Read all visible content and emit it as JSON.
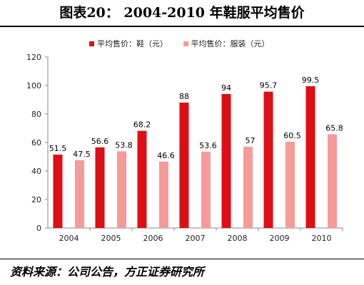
{
  "title": "图表20：  2004-2010 年鞋服平均售价",
  "source": "资料来源：公司公告，方正证券研究所",
  "chart_data": {
    "type": "bar",
    "categories": [
      "2004",
      "2005",
      "2006",
      "2007",
      "2008",
      "2009",
      "2010"
    ],
    "series": [
      {
        "name": "平均售价：鞋（元）",
        "color": "#dd0f14",
        "values": [
          51.5,
          56.6,
          68.2,
          88,
          94,
          95.7,
          99.5
        ]
      },
      {
        "name": "平均售价：服装（元）",
        "color": "#f79a9a",
        "values": [
          47.5,
          53.8,
          46.6,
          53.6,
          57,
          60.5,
          65.8
        ]
      }
    ],
    "ylim": [
      0,
      120
    ],
    "yticks": [
      0,
      20,
      40,
      60,
      80,
      100,
      120
    ],
    "legend": "top",
    "grid": false
  }
}
